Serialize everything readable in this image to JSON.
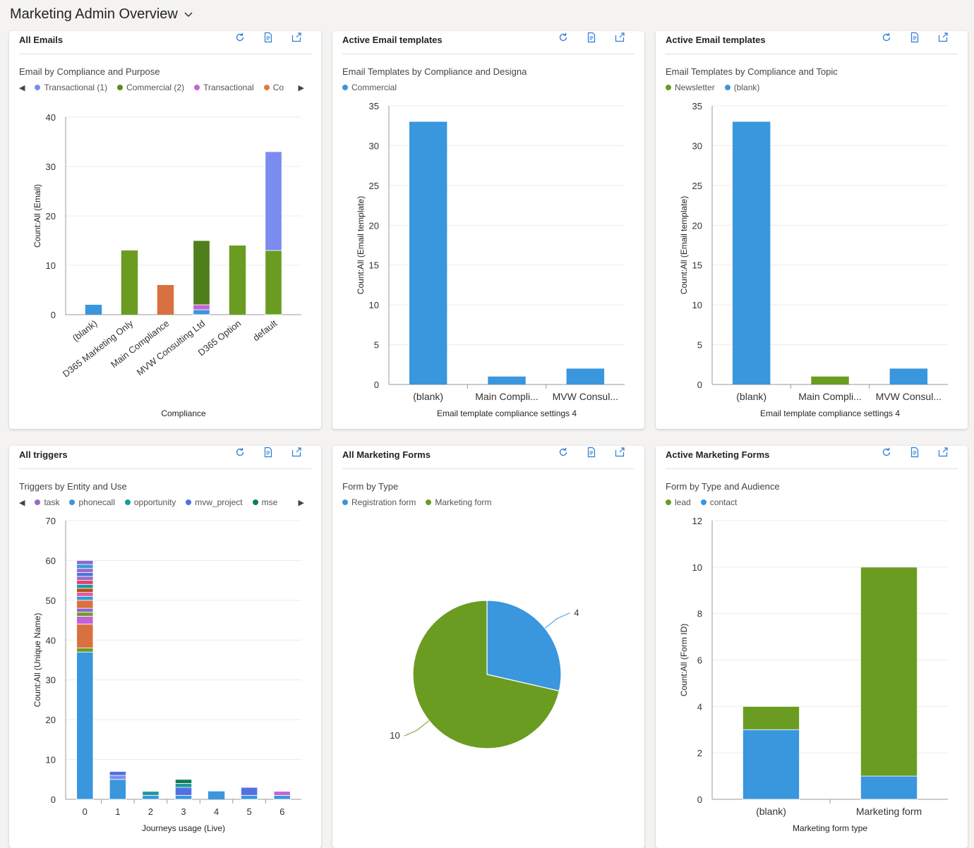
{
  "header": {
    "title": "Marketing Admin Overview"
  },
  "toolbar": {
    "refresh": "refresh-icon",
    "view_records": "view-records-icon",
    "expand": "expand-icon"
  },
  "cards": [
    {
      "title": "All Emails",
      "chart_title": "Email by Compliance and Purpose",
      "legend_nav": true,
      "legend": [
        {
          "label": "Transactional (1)",
          "color": "#7b8cf0"
        },
        {
          "label": "Commercial (2)",
          "color": "#5b8c1c"
        },
        {
          "label": "Transactional",
          "color": "#c363d6"
        },
        {
          "label": "Co",
          "color": "#e07b3c"
        }
      ]
    },
    {
      "title": "Active Email templates",
      "chart_title": "Email Templates by Compliance and Designa",
      "legend_nav": false,
      "legend": [
        {
          "label": "Commercial",
          "color": "#3a96dd"
        }
      ]
    },
    {
      "title": "Active Email templates",
      "chart_title": "Email Templates by Compliance and Topic",
      "legend_nav": false,
      "legend": [
        {
          "label": "Newsletter",
          "color": "#6a9c22"
        },
        {
          "label": "(blank)",
          "color": "#3a96dd"
        }
      ]
    },
    {
      "title": "All triggers",
      "chart_title": "Triggers by Entity and Use",
      "legend_nav": true,
      "legend": [
        {
          "label": "task",
          "color": "#9b6ac4"
        },
        {
          "label": "phonecall",
          "color": "#3a96dd"
        },
        {
          "label": "opportunity",
          "color": "#1a9b9b"
        },
        {
          "label": "mvw_project",
          "color": "#5470e0"
        },
        {
          "label": "mse",
          "color": "#107c50"
        }
      ]
    },
    {
      "title": "All Marketing Forms",
      "chart_title": "Form by Type",
      "legend_nav": false,
      "legend": [
        {
          "label": "Registration form",
          "color": "#3a96dd"
        },
        {
          "label": "Marketing form",
          "color": "#6a9c22"
        }
      ]
    },
    {
      "title": "Active Marketing Forms",
      "chart_title": "Form by Type and Audience",
      "legend_nav": false,
      "legend": [
        {
          "label": "lead",
          "color": "#6a9c22"
        },
        {
          "label": "contact",
          "color": "#3a96dd"
        }
      ]
    }
  ],
  "chart_data": [
    {
      "type": "bar",
      "stacked": true,
      "xlabel": "Compliance",
      "ylabel": "Count:All (Email)",
      "ylim": [
        0,
        40
      ],
      "yticks": [
        0,
        10,
        20,
        30,
        40
      ],
      "categories": [
        "(blank)",
        "D365 Marketing Only",
        "Main Compliance",
        "MVW Consulting Ltd",
        "D365 Option",
        "default"
      ],
      "stacks": [
        [
          {
            "v": 2,
            "c": "#3a96dd"
          }
        ],
        [
          {
            "v": 13,
            "c": "#6a9c22"
          }
        ],
        [
          {
            "v": 6,
            "c": "#d9703f"
          }
        ],
        [
          {
            "v": 1,
            "c": "#3a96dd"
          },
          {
            "v": 1,
            "c": "#c363d6"
          },
          {
            "v": 13,
            "c": "#4e7f1b"
          }
        ],
        [
          {
            "v": 14,
            "c": "#6a9c22"
          }
        ],
        [
          {
            "v": 13,
            "c": "#6a9c22"
          },
          {
            "v": 20,
            "c": "#7b8cf0"
          }
        ]
      ]
    },
    {
      "type": "bar",
      "xlabel": "Email template compliance settings 4",
      "ylabel": "Count:All (Email template)",
      "ylim": [
        0,
        35
      ],
      "yticks": [
        0,
        5,
        10,
        15,
        20,
        25,
        30,
        35
      ],
      "categories": [
        "(blank)",
        "Main Compli...",
        "MVW Consul..."
      ],
      "series": [
        {
          "name": "Commercial",
          "values": [
            33,
            1,
            2
          ]
        }
      ],
      "color": "#3a96dd"
    },
    {
      "type": "bar",
      "xlabel": "Email template compliance settings 4",
      "ylabel": "Count:All (Email template)",
      "ylim": [
        0,
        35
      ],
      "yticks": [
        0,
        5,
        10,
        15,
        20,
        25,
        30,
        35
      ],
      "categories": [
        "(blank)",
        "Main Compli...",
        "MVW Consul..."
      ],
      "stacks": [
        [
          {
            "v": 33,
            "c": "#3a96dd"
          }
        ],
        [
          {
            "v": 1,
            "c": "#6a9c22"
          }
        ],
        [
          {
            "v": 2,
            "c": "#3a96dd"
          }
        ]
      ]
    },
    {
      "type": "bar",
      "stacked": true,
      "xlabel": "Journeys usage (Live)",
      "ylabel": "Count:All (Unique Name)",
      "ylim": [
        0,
        70
      ],
      "yticks": [
        0,
        10,
        20,
        30,
        40,
        50,
        60,
        70
      ],
      "categories": [
        "0",
        "1",
        "2",
        "3",
        "4",
        "5",
        "6"
      ],
      "stacks": [
        [
          {
            "v": 37,
            "c": "#3a96dd"
          },
          {
            "v": 1,
            "c": "#6a9c22"
          },
          {
            "v": 6,
            "c": "#d9703f"
          },
          {
            "v": 2,
            "c": "#c363d6"
          },
          {
            "v": 1,
            "c": "#6a9c22"
          },
          {
            "v": 1,
            "c": "#8a6ad0"
          },
          {
            "v": 2,
            "c": "#d9703f"
          },
          {
            "v": 1,
            "c": "#3a96dd"
          },
          {
            "v": 1,
            "c": "#e05c9c"
          },
          {
            "v": 1,
            "c": "#b84a1a"
          },
          {
            "v": 1,
            "c": "#1a9b9b"
          },
          {
            "v": 1,
            "c": "#e0407a"
          },
          {
            "v": 1,
            "c": "#9b6ac4"
          },
          {
            "v": 1,
            "c": "#5470e0"
          },
          {
            "v": 1,
            "c": "#9b6ac4"
          },
          {
            "v": 1,
            "c": "#3a96dd"
          },
          {
            "v": 1,
            "c": "#8a6ad0"
          }
        ],
        [
          {
            "v": 5,
            "c": "#3a96dd"
          },
          {
            "v": 1,
            "c": "#7b8cf0"
          },
          {
            "v": 1,
            "c": "#5470e0"
          }
        ],
        [
          {
            "v": 1,
            "c": "#3a96dd"
          },
          {
            "v": 1,
            "c": "#1a9b9b"
          }
        ],
        [
          {
            "v": 1,
            "c": "#3a96dd"
          },
          {
            "v": 2,
            "c": "#5470e0"
          },
          {
            "v": 1,
            "c": "#1a9b9b"
          },
          {
            "v": 1,
            "c": "#107c50"
          }
        ],
        [
          {
            "v": 2,
            "c": "#3a96dd"
          }
        ],
        [
          {
            "v": 1,
            "c": "#3a96dd"
          },
          {
            "v": 2,
            "c": "#5470e0"
          }
        ],
        [
          {
            "v": 1,
            "c": "#3a96dd"
          },
          {
            "v": 1,
            "c": "#c363d6"
          }
        ]
      ]
    },
    {
      "type": "pie",
      "slices": [
        {
          "label": "Registration form",
          "value": 4,
          "color": "#3a96dd"
        },
        {
          "label": "Marketing form",
          "value": 10,
          "color": "#6a9c22"
        }
      ]
    },
    {
      "type": "bar",
      "stacked": true,
      "xlabel": "Marketing form type",
      "ylabel": "Count:All (Form ID)",
      "ylim": [
        0,
        12
      ],
      "yticks": [
        0,
        2,
        4,
        6,
        8,
        10,
        12
      ],
      "categories": [
        "(blank)",
        "Marketing form"
      ],
      "stacks": [
        [
          {
            "v": 3,
            "c": "#3a96dd"
          },
          {
            "v": 1,
            "c": "#6a9c22"
          }
        ],
        [
          {
            "v": 1,
            "c": "#3a96dd"
          },
          {
            "v": 9,
            "c": "#6a9c22"
          }
        ]
      ]
    }
  ]
}
